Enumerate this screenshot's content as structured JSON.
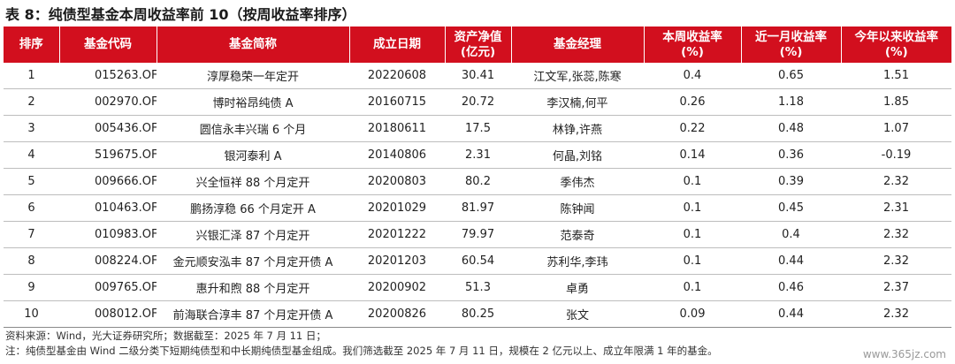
{
  "title": "表 8：纯债型基金本周收益率前 10（按周收益率排序）",
  "headers": {
    "rank": "排序",
    "code": "基金代码",
    "name": "基金简称",
    "date": "成立日期",
    "nav_line1": "资产净值",
    "nav_line2": "(亿元)",
    "manager": "基金经理",
    "week_line1": "本周收益率",
    "week_line2": "(%)",
    "month_line1": "近一月收益率",
    "month_line2": "(%)",
    "ytd_line1": "今年以来收益率",
    "ytd_line2": "(%)"
  },
  "rows": [
    {
      "rank": "1",
      "code": "015263.OF",
      "name": "淳厚稳荣一年定开",
      "date": "20220608",
      "nav": "30.41",
      "manager": "江文军,张蕊,陈寒",
      "week": "0.4",
      "month": "0.65",
      "ytd": "1.51"
    },
    {
      "rank": "2",
      "code": "002970.OF",
      "name": "博时裕昂纯债 A",
      "date": "20160715",
      "nav": "20.72",
      "manager": "李汉楠,何平",
      "week": "0.26",
      "month": "1.18",
      "ytd": "1.85"
    },
    {
      "rank": "3",
      "code": "005436.OF",
      "name": "圆信永丰兴瑞 6 个月",
      "date": "20180611",
      "nav": "17.5",
      "manager": "林铮,许燕",
      "week": "0.22",
      "month": "0.48",
      "ytd": "1.07"
    },
    {
      "rank": "4",
      "code": "519675.OF",
      "name": "银河泰利 A",
      "date": "20140806",
      "nav": "2.31",
      "manager": "何晶,刘铭",
      "week": "0.14",
      "month": "0.36",
      "ytd": "-0.19"
    },
    {
      "rank": "5",
      "code": "009666.OF",
      "name": "兴全恒祥 88 个月定开",
      "date": "20200803",
      "nav": "80.2",
      "manager": "季伟杰",
      "week": "0.1",
      "month": "0.39",
      "ytd": "2.32"
    },
    {
      "rank": "6",
      "code": "010463.OF",
      "name": "鹏扬淳稳 66 个月定开 A",
      "date": "20201029",
      "nav": "81.97",
      "manager": "陈钟闻",
      "week": "0.1",
      "month": "0.45",
      "ytd": "2.31"
    },
    {
      "rank": "7",
      "code": "010983.OF",
      "name": "兴银汇泽 87 个月定开",
      "date": "20201222",
      "nav": "79.97",
      "manager": "范泰奇",
      "week": "0.1",
      "month": "0.4",
      "ytd": "2.32"
    },
    {
      "rank": "8",
      "code": "008224.OF",
      "name": "金元顺安泓丰 87 个月定开债 A",
      "date": "20201203",
      "nav": "60.54",
      "manager": "苏利华,李玮",
      "week": "0.1",
      "month": "0.44",
      "ytd": "2.32"
    },
    {
      "rank": "9",
      "code": "009765.OF",
      "name": "惠升和煦 88 个月定开",
      "date": "20200902",
      "nav": "51.3",
      "manager": "卓勇",
      "week": "0.1",
      "month": "0.46",
      "ytd": "2.37"
    },
    {
      "rank": "10",
      "code": "008012.OF",
      "name": "前海联合淳丰 87 个月定开债 A",
      "date": "20200826",
      "nav": "80.25",
      "manager": "张文",
      "week": "0.09",
      "month": "0.44",
      "ytd": "2.32"
    }
  ],
  "notes": {
    "source": "资料来源：Wind，光大证券研究所；数据截至：2025 年 7 月 11 日；",
    "note": "注：纯债型基金由 Wind 二级分类下短期纯债型和中长期纯债型基金组成。我们筛选截至 2025 年 7 月 11 日，规模在 2 亿元以上、成立年限满 1 年的基金。"
  },
  "watermark": "www.365jz.com"
}
